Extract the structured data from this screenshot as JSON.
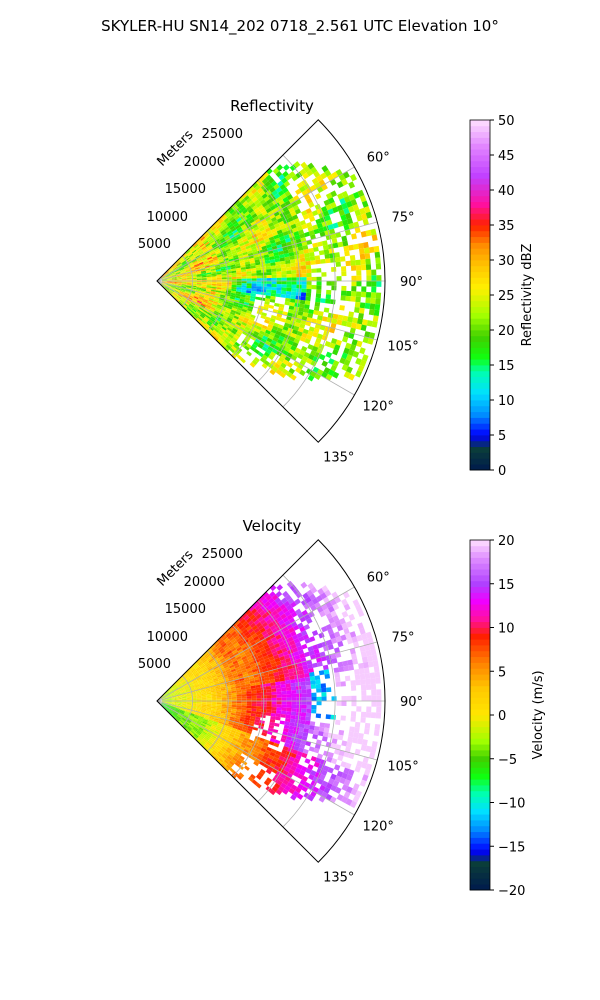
{
  "figure": {
    "suptitle": "SKYLER-HU  SN14_202  0718_2.561 UTC Elevation 10°"
  },
  "chart_data": [
    {
      "type": "heatmap",
      "subtype": "polar-radar-sector",
      "title": "Reflectivity",
      "radial_axis_label": "Meters",
      "radial_ticks": [
        5000,
        10000,
        15000,
        20000,
        25000
      ],
      "radial_tick_labels": [
        "5000",
        "10000",
        "15000",
        "20000",
        "25000"
      ],
      "angular_ticks": [
        60,
        75,
        90,
        105,
        120,
        135
      ],
      "angular_tick_labels": [
        "60°",
        "75°",
        "90°",
        "105°",
        "120°",
        "135°"
      ],
      "azimuth_range_deg": [
        45,
        135
      ],
      "range_max_m": 32000,
      "grid": true,
      "colorbar": {
        "label": "Reflectivity dBZ",
        "min": 0,
        "max": 50,
        "ticks": [
          0,
          5,
          10,
          15,
          20,
          25,
          30,
          35,
          40,
          45,
          50
        ],
        "tick_labels": [
          "0",
          "5",
          "10",
          "15",
          "20",
          "25",
          "30",
          "35",
          "40",
          "45",
          "50"
        ],
        "stops": [
          [
            0,
            "#001a4d"
          ],
          [
            3,
            "#0a3d3a"
          ],
          [
            5,
            "#0000ff"
          ],
          [
            8,
            "#0090ff"
          ],
          [
            11,
            "#00e0ff"
          ],
          [
            14,
            "#00ffb0"
          ],
          [
            16,
            "#10ff10"
          ],
          [
            19,
            "#40d000"
          ],
          [
            22,
            "#a0ff00"
          ],
          [
            26,
            "#fff000"
          ],
          [
            29,
            "#ffc800"
          ],
          [
            32,
            "#ff9000"
          ],
          [
            35,
            "#ff2000"
          ],
          [
            38,
            "#ff10a0"
          ],
          [
            42,
            "#c040ff"
          ],
          [
            46,
            "#e080ff"
          ],
          [
            50,
            "#ffe0ff"
          ]
        ]
      }
    },
    {
      "type": "heatmap",
      "subtype": "polar-radar-sector",
      "title": "Velocity",
      "radial_axis_label": "Meters",
      "radial_ticks": [
        5000,
        10000,
        15000,
        20000,
        25000
      ],
      "radial_tick_labels": [
        "5000",
        "10000",
        "15000",
        "20000",
        "25000"
      ],
      "angular_ticks": [
        60,
        75,
        90,
        105,
        120,
        135
      ],
      "angular_tick_labels": [
        "60°",
        "75°",
        "90°",
        "105°",
        "120°",
        "135°"
      ],
      "azimuth_range_deg": [
        45,
        135
      ],
      "range_max_m": 32000,
      "grid": true,
      "colorbar": {
        "label": "Velocity (m/s)",
        "min": -20,
        "max": 20,
        "ticks": [
          -20,
          -15,
          -10,
          -5,
          0,
          5,
          10,
          15,
          20
        ],
        "tick_labels": [
          "−20",
          "−15",
          "−10",
          "−5",
          "0",
          "5",
          "10",
          "15",
          "20"
        ],
        "stops": [
          [
            -20,
            "#001a4d"
          ],
          [
            -17,
            "#0a3d3a"
          ],
          [
            -15.5,
            "#0000ff"
          ],
          [
            -13,
            "#0090ff"
          ],
          [
            -11,
            "#00e0ff"
          ],
          [
            -9,
            "#00ffb0"
          ],
          [
            -7,
            "#10ff10"
          ],
          [
            -5,
            "#40d000"
          ],
          [
            -3,
            "#a0ff00"
          ],
          [
            0,
            "#ffe600"
          ],
          [
            3,
            "#ffc800"
          ],
          [
            6,
            "#ff8000"
          ],
          [
            9,
            "#ff2000"
          ],
          [
            11,
            "#ff10a0"
          ],
          [
            13,
            "#f000ff"
          ],
          [
            15,
            "#b040ff"
          ],
          [
            18,
            "#e090ff"
          ],
          [
            20,
            "#ffe0ff"
          ]
        ]
      }
    }
  ]
}
